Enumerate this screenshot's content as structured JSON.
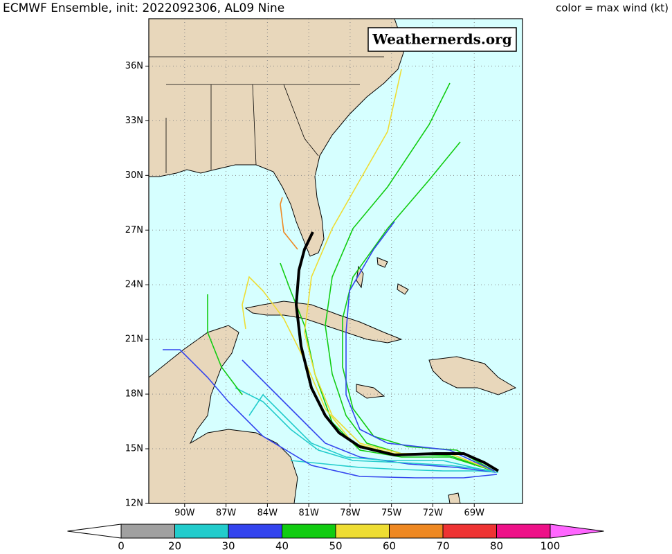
{
  "chart_data": {
    "type": "track-map",
    "title": "ECMWF Ensemble, init: 2022092306, AL09 Nine",
    "legend_title": "color = max wind (kt)",
    "watermark": "Weathernerds.org",
    "xlim": [
      -92.6,
      -65.5
    ],
    "ylim": [
      12,
      38.6
    ],
    "xticks": [
      {
        "value": -90,
        "label": "90W"
      },
      {
        "value": -87,
        "label": "87W"
      },
      {
        "value": -84,
        "label": "84W"
      },
      {
        "value": -81,
        "label": "81W"
      },
      {
        "value": -78,
        "label": "78W"
      },
      {
        "value": -75,
        "label": "75W"
      },
      {
        "value": -72,
        "label": "72W"
      },
      {
        "value": -69,
        "label": "69W"
      }
    ],
    "yticks": [
      {
        "value": 12,
        "label": "12N"
      },
      {
        "value": 15,
        "label": "15N"
      },
      {
        "value": 18,
        "label": "18N"
      },
      {
        "value": 21,
        "label": "21N"
      },
      {
        "value": 24,
        "label": "24N"
      },
      {
        "value": 27,
        "label": "27N"
      },
      {
        "value": 30,
        "label": "30N"
      },
      {
        "value": 33,
        "label": "33N"
      },
      {
        "value": 36,
        "label": "36N"
      }
    ],
    "grid": true,
    "colorbar": {
      "ticks": [
        0,
        20,
        30,
        40,
        50,
        60,
        70,
        80,
        100
      ],
      "colors": [
        "#a0a0a0",
        "#22cccc",
        "#3344ee",
        "#11cc11",
        "#eedd33",
        "#ee8822",
        "#ee3333",
        "#ee1188"
      ],
      "under_color": "#ffffff",
      "over_color": "#ff66ff"
    }
  }
}
